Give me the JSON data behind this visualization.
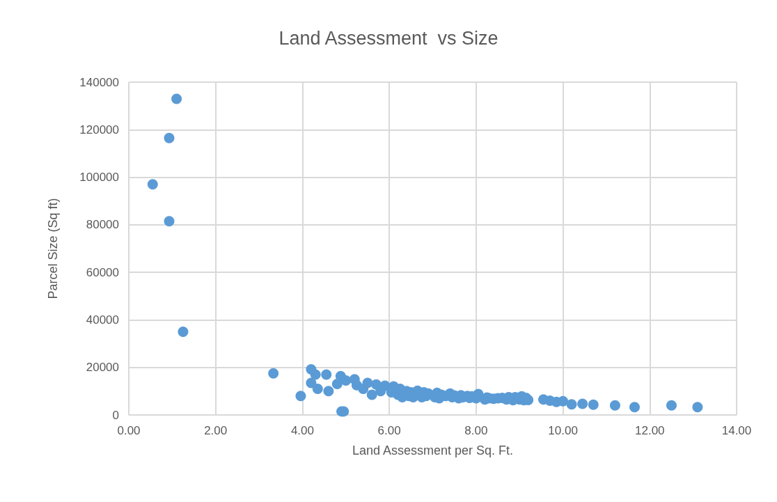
{
  "chart_data": {
    "type": "scatter",
    "title": "Land Assessment  vs Size",
    "xlabel": "Land Assessment per Sq. Ft.",
    "ylabel": "Parcel Size (Sq ft)",
    "x": [
      0.55,
      0.93,
      1.1,
      0.93,
      1.25,
      3.33,
      3.96,
      4.2,
      4.2,
      4.3,
      4.35,
      4.55,
      4.6,
      4.8,
      4.88,
      4.9,
      4.95,
      5.0,
      5.2,
      5.25,
      5.4,
      5.5,
      5.6,
      5.7,
      5.8,
      5.9,
      6.05,
      6.1,
      6.2,
      6.25,
      6.3,
      6.4,
      6.45,
      6.5,
      6.55,
      6.65,
      6.75,
      6.8,
      6.85,
      6.9,
      7.05,
      7.1,
      7.15,
      7.2,
      7.3,
      7.4,
      7.45,
      7.5,
      7.6,
      7.65,
      7.7,
      7.8,
      7.85,
      7.9,
      8.0,
      8.05,
      8.2,
      8.25,
      8.3,
      8.4,
      8.5,
      8.6,
      8.7,
      8.75,
      8.85,
      8.9,
      9.0,
      9.05,
      9.1,
      9.15,
      9.2,
      9.55,
      9.7,
      9.85,
      10.0,
      10.2,
      10.45,
      10.7,
      11.2,
      11.65,
      12.5,
      13.1
    ],
    "values": [
      97000,
      116500,
      133000,
      81500,
      35000,
      17500,
      8000,
      19200,
      13500,
      17000,
      11000,
      17000,
      10000,
      13000,
      16300,
      1500,
      1500,
      14500,
      15000,
      12500,
      11000,
      13500,
      8500,
      12800,
      10000,
      12300,
      9500,
      12000,
      8500,
      11000,
      7500,
      10000,
      8000,
      9500,
      7500,
      10200,
      7500,
      9500,
      8000,
      9000,
      7500,
      9300,
      7000,
      8500,
      8000,
      9000,
      7500,
      8200,
      7000,
      8300,
      7500,
      8000,
      7200,
      7800,
      7000,
      8800,
      6500,
      7300,
      7000,
      6800,
      7000,
      7200,
      6500,
      7500,
      6200,
      7500,
      6500,
      7800,
      6200,
      7200,
      6300,
      6500,
      6000,
      5500,
      5800,
      4500,
      4700,
      4300,
      4000,
      3300,
      4000,
      3300
    ],
    "color": "#5b9bd5",
    "marker": "circle",
    "grid": true,
    "xlim": [
      0,
      14
    ],
    "xticks": [
      {
        "value": 0,
        "label": "0.00"
      },
      {
        "value": 2,
        "label": "2.00"
      },
      {
        "value": 4,
        "label": "4.00"
      },
      {
        "value": 6,
        "label": "6.00"
      },
      {
        "value": 8,
        "label": "8.00"
      },
      {
        "value": 10,
        "label": "10.00"
      },
      {
        "value": 12,
        "label": "12.00"
      },
      {
        "value": 14,
        "label": "14.00"
      }
    ],
    "ylim": [
      0,
      140000
    ],
    "yticks": [
      0,
      20000,
      40000,
      60000,
      80000,
      100000,
      120000,
      140000
    ]
  }
}
